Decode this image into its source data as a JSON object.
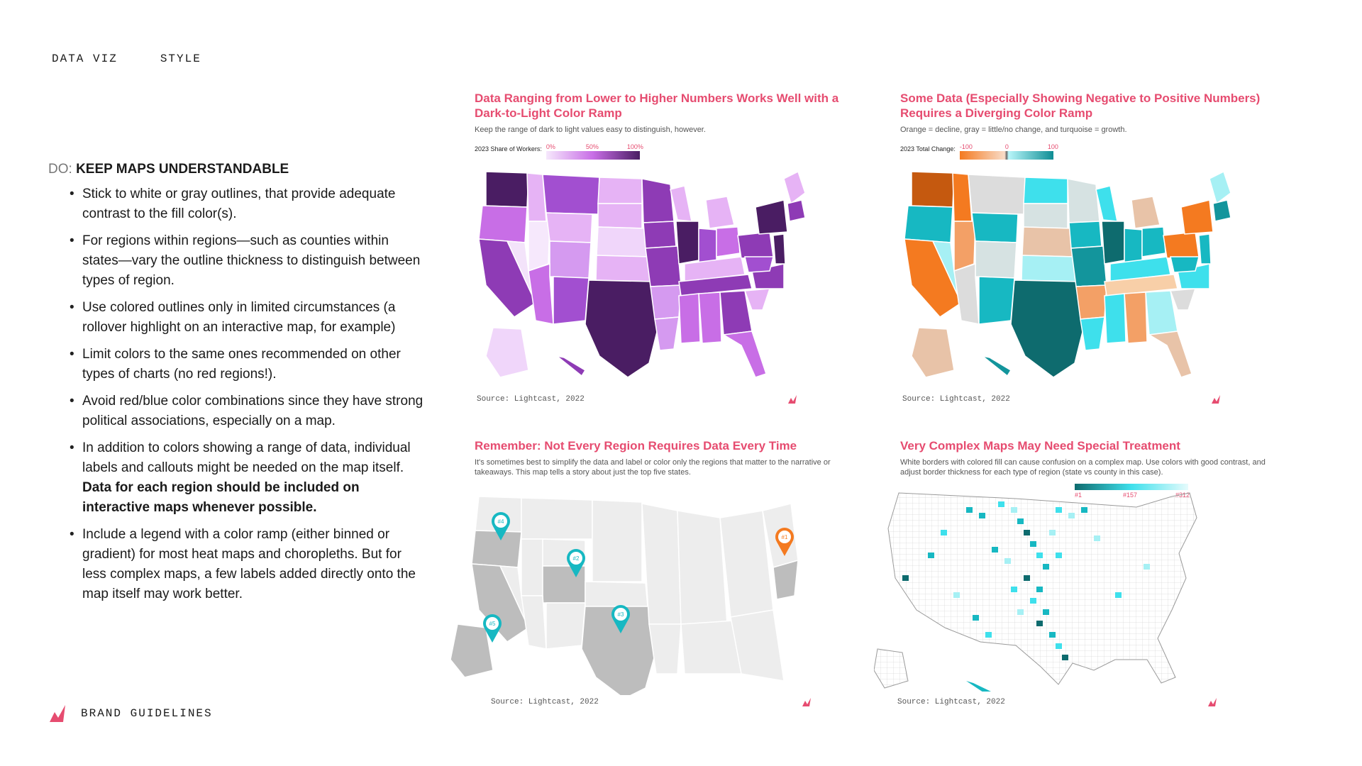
{
  "header": {
    "section": "DATA VIZ",
    "subsection": "STYLE"
  },
  "footer": {
    "label": "BRAND GUIDELINES"
  },
  "guidance": {
    "prefix": "DO:",
    "heading": "KEEP MAPS UNDERSTANDABLE",
    "bullets": [
      "Stick to white or gray outlines, that provide adequate contrast to the fill color(s).",
      "For regions within regions—such as counties within states—vary the outline thickness to distinguish between types of region.",
      "Use colored outlines only in limited circumstances (a rollover highlight on an interactive map, for example)",
      "Limit colors to the same ones recommended on other types of charts (no red regions!).",
      "Avoid red/blue color combinations since they have strong political associations, especially on a map.",
      "In addition to colors showing a range of data, individual labels and callouts might be needed on the map itself.",
      "Include a legend with a color ramp (either binned or gradient) for most heat maps and choropleths. But for less complex maps, a few labels added directly onto the map itself may work better."
    ],
    "bullet6_bold": "Data for each region should be included on interactive maps whenever possible."
  },
  "panels": [
    {
      "title": "Data Ranging from Lower to Higher Numbers Works Well with a Dark-to-Light Color Ramp",
      "subtitle": "Keep the range of dark to light values easy to distinguish, however.",
      "legend_label": "2023 Share of Workers:",
      "legend_ticks": [
        "0%",
        "50%",
        "100%"
      ],
      "source": "Source: Lightcast, 2022"
    },
    {
      "title": "Some Data (Especially Showing Negative to Positive Numbers) Requires a Diverging Color Ramp",
      "subtitle": "Orange = decline, gray = little/no change, and turquoise = growth.",
      "legend_label": "2023 Total Change:",
      "legend_ticks": [
        "-100",
        "0",
        "100"
      ],
      "source": "Source: Lightcast, 2022"
    },
    {
      "title": "Remember: Not Every Region Requires Data Every Time",
      "subtitle": "It's sometimes best to simplify the data and label or color only the regions that matter to the narrative or takeaways. This map tells a story about just the top five states.",
      "pins": [
        "#1",
        "#2",
        "#3",
        "#4",
        "#5"
      ],
      "source": "Source: Lightcast, 2022"
    },
    {
      "title": "Very Complex Maps May Need Special Treatment",
      "subtitle": "White borders with colored fill can cause confusion on a complex map. Use colors with good contrast, and adjust border thickness for each type of region (state vs county in this case).",
      "legend_ticks": [
        "#1",
        "#157",
        "#312"
      ],
      "source": "Source: Lightcast, 2022"
    }
  ],
  "colors": {
    "accent": "#e64c70",
    "purple_ramp": [
      "#f3e3fa",
      "#e6b3f5",
      "#c86ee6",
      "#8e3bb5",
      "#4a1d63"
    ],
    "diverging": [
      "#f47a20",
      "#e8c3a8",
      "#dcdcdc",
      "#a6f0f4",
      "#3ee0ec",
      "#17b8c2",
      "#0e6b6e"
    ],
    "gray_map": [
      "#ededed",
      "#bdbdbd"
    ]
  }
}
